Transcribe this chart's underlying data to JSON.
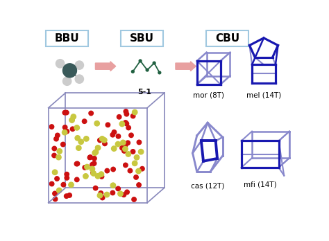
{
  "bg_color": "#ffffff",
  "bbu_label": "BBU",
  "sbu_label": "SBU",
  "cbu_label": "CBU",
  "label_box_color": "#a0c8e0",
  "label_fontsize": 11,
  "arrow_color": "#e8a0a0",
  "sbu_color": "#206040",
  "cage_color_dark": "#1818b0",
  "cage_color_light": "#8888cc",
  "mol_dark": "#3a5a5a",
  "mol_light": "#cccccc",
  "sublabel_fontsize": 7.5,
  "sublabels": [
    "5-1",
    "mor (8T)",
    "mel (14T)",
    "cas (12T)",
    "mfi (14T)"
  ],
  "box_color": "#8888bb",
  "red_atom": "#cc1010",
  "yg_atom": "#c8c840"
}
